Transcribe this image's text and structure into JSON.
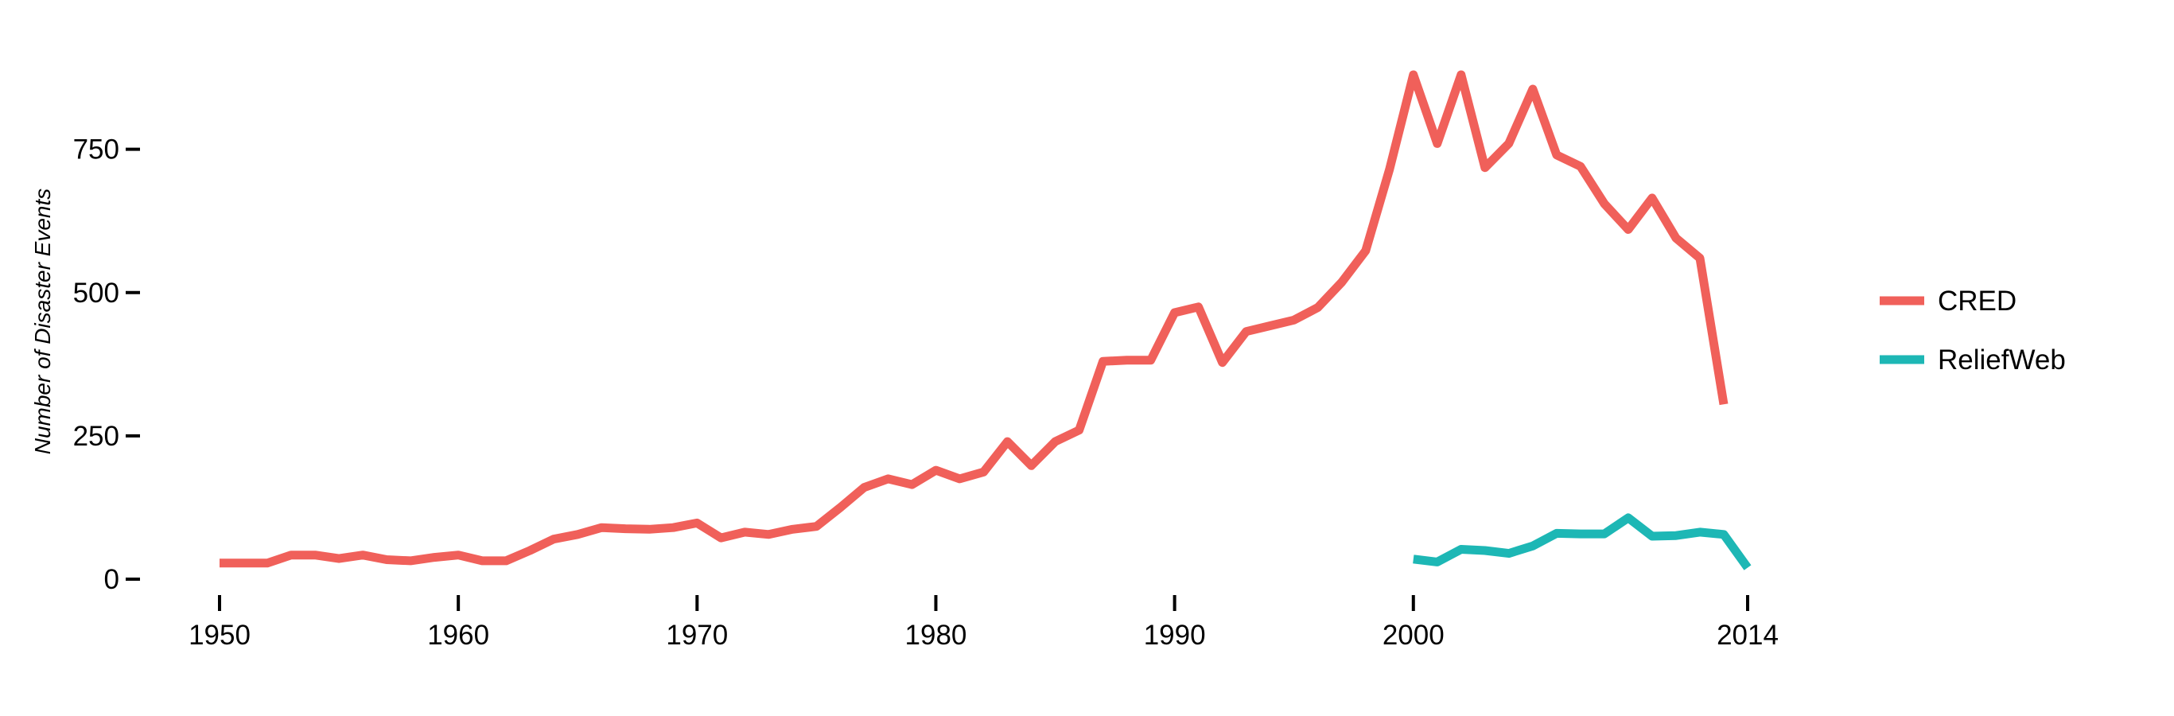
{
  "chart_data": {
    "type": "line",
    "title": "",
    "xlabel": "",
    "ylabel": "Number of Disaster Events",
    "xlim": [
      1950,
      2014
    ],
    "ylim": [
      0,
      900
    ],
    "x_ticks": [
      1950,
      1960,
      1970,
      1980,
      1990,
      2000,
      2014
    ],
    "y_ticks": [
      0,
      250,
      500,
      750
    ],
    "grid": false,
    "legend_position": "right",
    "series": [
      {
        "name": "CRED",
        "color": "#F0605A",
        "x": [
          1950,
          1951,
          1952,
          1953,
          1954,
          1955,
          1956,
          1957,
          1958,
          1959,
          1960,
          1961,
          1962,
          1963,
          1964,
          1965,
          1966,
          1967,
          1968,
          1969,
          1970,
          1971,
          1972,
          1973,
          1974,
          1975,
          1976,
          1977,
          1978,
          1979,
          1980,
          1981,
          1982,
          1983,
          1984,
          1985,
          1986,
          1987,
          1988,
          1989,
          1990,
          1991,
          1992,
          1993,
          1994,
          1995,
          1996,
          1997,
          1998,
          1999,
          2000,
          2001,
          2002,
          2003,
          2004,
          2005,
          2006,
          2007,
          2008,
          2009,
          2010,
          2011,
          2012,
          2013
        ],
        "values": [
          28,
          28,
          28,
          42,
          42,
          36,
          42,
          34,
          32,
          38,
          42,
          32,
          32,
          50,
          70,
          78,
          90,
          88,
          87,
          90,
          98,
          72,
          82,
          78,
          87,
          92,
          125,
          160,
          175,
          165,
          190,
          175,
          187,
          240,
          198,
          240,
          260,
          380,
          382,
          382,
          465,
          475,
          378,
          432,
          442,
          452,
          474,
          518,
          573,
          715,
          880,
          760,
          880,
          718,
          760,
          855,
          740,
          720,
          655,
          610,
          665,
          595,
          560,
          305
        ]
      },
      {
        "name": "ReliefWeb",
        "color": "#1DB7B5",
        "x": [
          2000,
          2001,
          2002,
          2003,
          2004,
          2005,
          2006,
          2007,
          2008,
          2009,
          2010,
          2011,
          2012,
          2013,
          2014
        ],
        "values": [
          35,
          30,
          52,
          50,
          45,
          58,
          80,
          79,
          79,
          107,
          75,
          76,
          82,
          78,
          20
        ]
      }
    ]
  }
}
